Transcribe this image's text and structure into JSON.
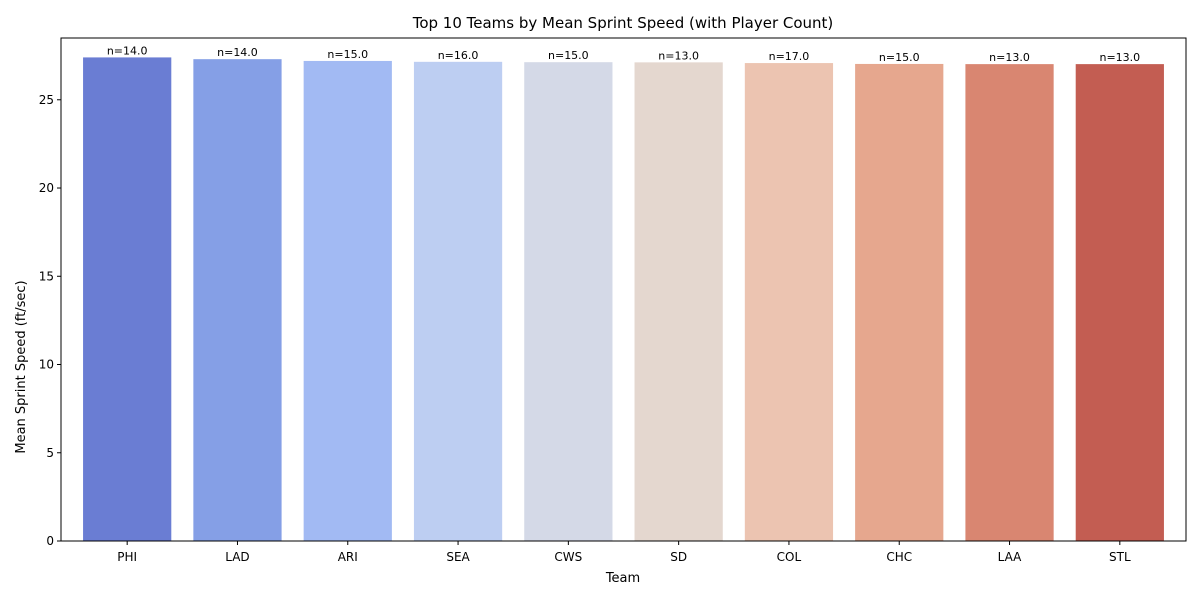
{
  "chart_data": {
    "type": "bar",
    "title": "Top 10 Teams by Mean Sprint Speed (with Player Count)",
    "xlabel": "Team",
    "ylabel": "Mean Sprint Speed (ft/sec)",
    "categories": [
      "PHI",
      "LAD",
      "ARI",
      "SEA",
      "CWS",
      "SD",
      "COL",
      "CHC",
      "LAA",
      "STL"
    ],
    "values": [
      27.4,
      27.3,
      27.2,
      27.15,
      27.13,
      27.12,
      27.08,
      27.03,
      27.02,
      27.02
    ],
    "data_labels": [
      "n=14.0",
      "n=14.0",
      "n=15.0",
      "n=16.0",
      "n=15.0",
      "n=13.0",
      "n=17.0",
      "n=15.0",
      "n=13.0",
      "n=13.0"
    ],
    "ylim": [
      0,
      28.5
    ],
    "yticks": [
      0,
      5,
      10,
      15,
      20,
      25
    ],
    "grid": false,
    "colors": [
      "#6a7dd3",
      "#859fe6",
      "#a2baf3",
      "#bdcef2",
      "#d4d9e7",
      "#e4d7cf",
      "#ecc4b1",
      "#e6a78e",
      "#d98671",
      "#c35d52"
    ]
  }
}
